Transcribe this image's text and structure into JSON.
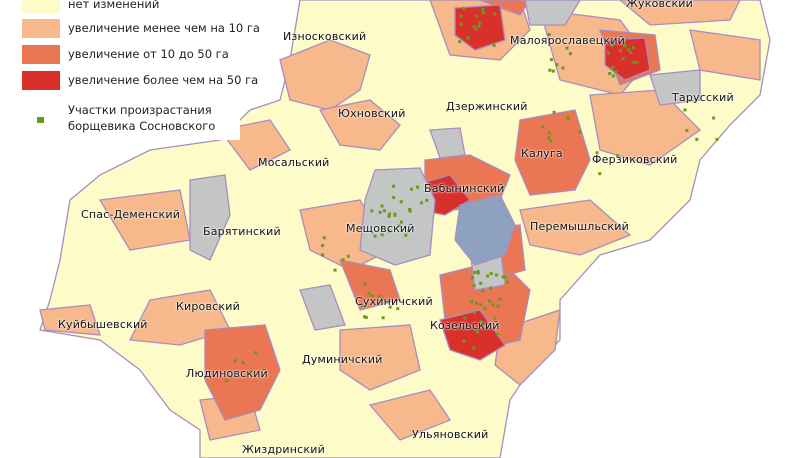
{
  "legend": {
    "items": [
      {
        "label": "нет изменений",
        "color": "#fdfbc8"
      },
      {
        "label": "увеличение менее чем на 10 га",
        "color": "#f7b98c"
      },
      {
        "label": "увеличение от 10 до 50 га",
        "color": "#ea7654"
      },
      {
        "label": "увеличение более чем на 50 га",
        "color": "#d9302b"
      }
    ],
    "sites_label_1": "Участки произрастания",
    "sites_label_2": "борщевика Сосновского",
    "sites_color": "#6a9a1a"
  },
  "colors": {
    "border": "#a98cc0",
    "gray": "#c3c6c4",
    "city": "#8ea2bf"
  },
  "districts": [
    {
      "name": "Износковский"
    },
    {
      "name": "Малоярославецкий"
    },
    {
      "name": "Жуковский"
    },
    {
      "name": "Тарусский"
    },
    {
      "name": "Юхновский"
    },
    {
      "name": "Дзержинский"
    },
    {
      "name": "Калуга"
    },
    {
      "name": "Ферзиковский"
    },
    {
      "name": "Мосальский"
    },
    {
      "name": "Бабынинский"
    },
    {
      "name": "Спас-Деменский"
    },
    {
      "name": "Барятинский"
    },
    {
      "name": "Мещовский"
    },
    {
      "name": "Перемышльский"
    },
    {
      "name": "Кировский"
    },
    {
      "name": "Сухиничский"
    },
    {
      "name": "Куйбышевский"
    },
    {
      "name": "Козельский"
    },
    {
      "name": "Людиновский"
    },
    {
      "name": "Думиничский"
    },
    {
      "name": "Жиздринский"
    },
    {
      "name": "Ульяновский"
    }
  ]
}
